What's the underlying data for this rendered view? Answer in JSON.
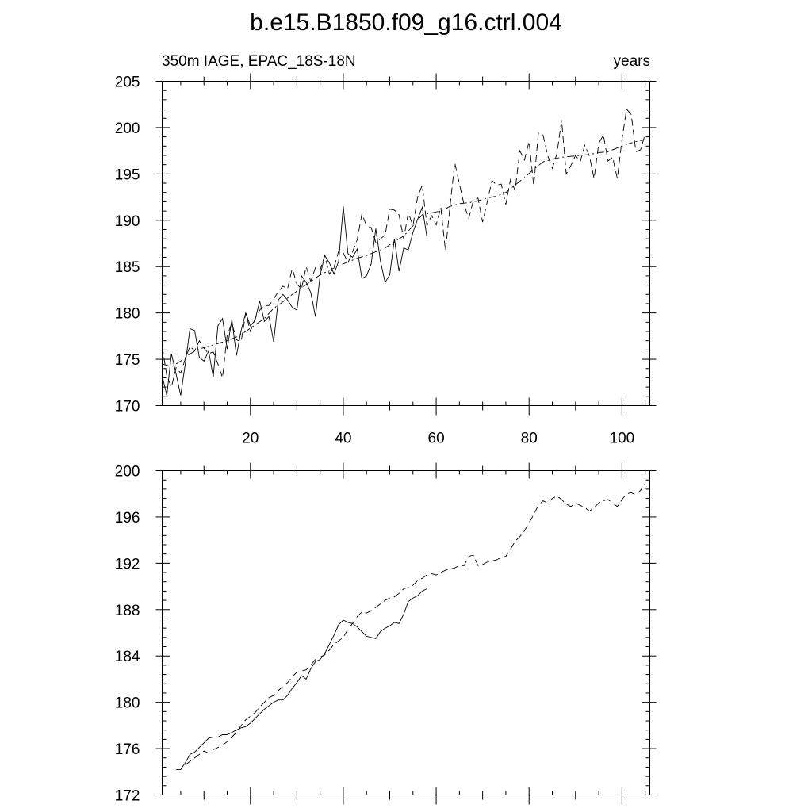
{
  "figure": {
    "title": "b.e15.B1850.f09_g16.ctrl.004"
  },
  "chart_data": [
    {
      "type": "line",
      "title": "b.e15.B1850.f09_g16.ctrl.004",
      "left_label": "350m IAGE, EPAC_18S-18N",
      "right_label": "years",
      "xlim": [
        1,
        106
      ],
      "ylim": [
        170,
        205
      ],
      "xticks": [
        20,
        40,
        60,
        80,
        100
      ],
      "yticks": [
        170,
        175,
        180,
        185,
        190,
        195,
        200,
        205
      ],
      "grid": false,
      "series": [
        {
          "style": "solid",
          "x": [
            1,
            2,
            3,
            4,
            5,
            6,
            7,
            8,
            9,
            10,
            11,
            12,
            13,
            14,
            15,
            16,
            17,
            18,
            19,
            20,
            21,
            22,
            23,
            24,
            25,
            26,
            27,
            28,
            29,
            30,
            31,
            32,
            33,
            34,
            35,
            36,
            37,
            38,
            39,
            40,
            41,
            42,
            43,
            44,
            45,
            46,
            47,
            48,
            49,
            50,
            51,
            52,
            53,
            54,
            55,
            56,
            57,
            58
          ],
          "y": [
            173.2,
            171.1,
            175.6,
            173.4,
            171.1,
            174.6,
            178.3,
            178.1,
            175.2,
            174.8,
            175.9,
            173.1,
            178.6,
            179.4,
            176.1,
            179.3,
            175.4,
            178.1,
            180.0,
            178.6,
            179.2,
            181.3,
            179.1,
            179.6,
            176.9,
            181.4,
            182.0,
            181.4,
            180.6,
            180.3,
            184.0,
            183.3,
            182.2,
            179.6,
            184.0,
            186.2,
            185.4,
            184.2,
            185.6,
            191.5,
            186.4,
            186.0,
            186.9,
            183.7,
            184.0,
            185.3,
            189.1,
            185.6,
            183.3,
            184.1,
            188.0,
            184.5,
            187.0,
            186.8,
            188.7,
            190.1,
            191.4,
            188.2
          ]
        },
        {
          "style": "dashed",
          "x": [
            1,
            2,
            3,
            4,
            5,
            6,
            7,
            8,
            9,
            10,
            11,
            12,
            13,
            14,
            15,
            16,
            17,
            18,
            19,
            20,
            21,
            22,
            23,
            24,
            25,
            26,
            27,
            28,
            29,
            30,
            31,
            32,
            33,
            34,
            35,
            36,
            37,
            38,
            39,
            40,
            41,
            42,
            43,
            44,
            45,
            46,
            47,
            48,
            49,
            50,
            51,
            52,
            53,
            54,
            55,
            56,
            57,
            58,
            59,
            60,
            61,
            62,
            63,
            64,
            65,
            66,
            67,
            68,
            69,
            70,
            71,
            72,
            73,
            74,
            75,
            76,
            77,
            78,
            79,
            80,
            81,
            82,
            83,
            84,
            85,
            86,
            87,
            88,
            89,
            90,
            91,
            92,
            93,
            94,
            95,
            96,
            97,
            98,
            99,
            100,
            101,
            102,
            103,
            104,
            105
          ],
          "y": [
            176.4,
            173.2,
            172.0,
            174.1,
            173.5,
            175.1,
            176.4,
            175.9,
            177.0,
            176.2,
            175.6,
            175.8,
            174.5,
            173.0,
            177.6,
            178.9,
            177.1,
            176.9,
            180.0,
            178.0,
            179.4,
            180.3,
            180.8,
            180.8,
            181.5,
            182.3,
            182.9,
            182.6,
            184.8,
            183.1,
            182.6,
            185.0,
            183.4,
            184.9,
            184.6,
            186.2,
            184.2,
            184.9,
            186.7,
            186.5,
            185.4,
            186.6,
            187.9,
            190.7,
            189.4,
            189.2,
            187.6,
            188.0,
            188.4,
            191.2,
            191.1,
            190.6,
            188.0,
            190.8,
            189.4,
            192.5,
            193.8,
            189.4,
            190.5,
            189.5,
            191.4,
            186.7,
            191.6,
            196.2,
            193.9,
            191.7,
            190.2,
            192.1,
            192.4,
            189.8,
            192.0,
            194.3,
            193.8,
            193.9,
            191.7,
            194.4,
            193.2,
            197.5,
            196.5,
            198.5,
            193.7,
            199.4,
            199.2,
            197.0,
            195.6,
            197.2,
            200.8,
            195.0,
            195.9,
            197.0,
            196.3,
            198.1,
            196.9,
            194.5,
            198.3,
            199.2,
            196.4,
            196.8,
            194.5,
            198.7,
            202.0,
            201.4,
            197.4,
            197.6,
            199.3
          ]
        },
        {
          "style": "dash-dot",
          "x": [
            1,
            3,
            5,
            7,
            9,
            11,
            13,
            15,
            17,
            19,
            21,
            23,
            25,
            27,
            29,
            31,
            33,
            35,
            37,
            39,
            41,
            43,
            45,
            47,
            49,
            51,
            53,
            55,
            57,
            59,
            61,
            63,
            65,
            67,
            69,
            71,
            73,
            75,
            77,
            79,
            81,
            83,
            85,
            87,
            89,
            91,
            93,
            95,
            97,
            99,
            101,
            103,
            105
          ],
          "y": [
            174.5,
            174.2,
            174.8,
            175.6,
            176.1,
            176.4,
            176.7,
            177.0,
            177.4,
            178.0,
            178.7,
            179.4,
            180.5,
            181.2,
            182.0,
            182.7,
            183.4,
            184.1,
            184.6,
            185.1,
            185.5,
            185.9,
            186.2,
            186.6,
            187.0,
            187.7,
            188.3,
            189.4,
            190.6,
            190.8,
            191.0,
            191.5,
            191.8,
            191.9,
            192.1,
            192.4,
            192.6,
            193.0,
            193.8,
            194.6,
            195.5,
            196.3,
            196.6,
            196.8,
            196.9,
            197.0,
            197.1,
            197.3,
            197.4,
            197.8,
            198.2,
            198.5,
            198.7
          ]
        }
      ]
    },
    {
      "type": "line",
      "title": "",
      "xlim": [
        1,
        106
      ],
      "ylim": [
        172,
        200
      ],
      "xticks": [
        20,
        40,
        60,
        80,
        100
      ],
      "yticks": [
        172,
        176,
        180,
        184,
        188,
        192,
        196,
        200
      ],
      "grid": false,
      "series": [
        {
          "style": "solid",
          "x": [
            5,
            6,
            7,
            8,
            9,
            10,
            11,
            12,
            13,
            14,
            15,
            16,
            17,
            18,
            19,
            20,
            21,
            22,
            23,
            24,
            25,
            26,
            27,
            28,
            29,
            30,
            31,
            32,
            33,
            34,
            35,
            36,
            37,
            38,
            39,
            40,
            41,
            42,
            43,
            44,
            45,
            46,
            47,
            48,
            49,
            50,
            51,
            52,
            53,
            54,
            55,
            56,
            57,
            58
          ],
          "y": [
            174.2,
            174.8,
            175.5,
            175.7,
            176.1,
            176.5,
            176.9,
            177.0,
            177.0,
            177.2,
            177.2,
            177.4,
            177.6,
            177.8,
            177.9,
            178.2,
            178.6,
            179.0,
            179.4,
            179.7,
            180.0,
            180.2,
            180.2,
            180.6,
            181.2,
            181.7,
            182.3,
            182.0,
            182.9,
            183.5,
            183.7,
            184.2,
            185.0,
            185.8,
            186.7,
            187.1,
            186.9,
            186.8,
            186.5,
            186.1,
            185.7,
            185.6,
            185.5,
            186.1,
            186.4,
            186.6,
            186.9,
            186.8,
            187.6,
            188.7,
            189.0,
            189.2,
            189.6,
            189.8
          ]
        },
        {
          "style": "dashed",
          "x": [
            4,
            5,
            6,
            7,
            8,
            9,
            10,
            11,
            12,
            13,
            14,
            15,
            16,
            17,
            18,
            19,
            20,
            21,
            22,
            23,
            24,
            25,
            26,
            27,
            28,
            29,
            30,
            31,
            32,
            33,
            34,
            35,
            36,
            37,
            38,
            39,
            40,
            41,
            42,
            43,
            44,
            45,
            46,
            47,
            48,
            49,
            50,
            51,
            52,
            53,
            54,
            55,
            56,
            57,
            58,
            59,
            60,
            61,
            62,
            63,
            64,
            65,
            66,
            67,
            68,
            69,
            70,
            71,
            72,
            73,
            74,
            75,
            76,
            77,
            78,
            79,
            80,
            81,
            82,
            83,
            84,
            85,
            86,
            87,
            88,
            89,
            90,
            91,
            92,
            93,
            94,
            95,
            96,
            97,
            98,
            99,
            100,
            101,
            102,
            103,
            104,
            105
          ],
          "y": [
            174.2,
            174.2,
            174.6,
            174.9,
            175.2,
            175.5,
            175.8,
            175.6,
            175.9,
            176.1,
            176.3,
            176.6,
            177.0,
            177.4,
            178.0,
            178.5,
            178.8,
            179.1,
            179.6,
            180.0,
            180.4,
            180.6,
            181.0,
            181.4,
            181.7,
            182.2,
            182.6,
            182.7,
            182.8,
            183.2,
            183.7,
            183.9,
            184.1,
            184.5,
            185.0,
            185.3,
            185.6,
            186.3,
            186.8,
            187.4,
            187.8,
            187.7,
            187.9,
            188.2,
            188.5,
            188.8,
            189.0,
            189.1,
            189.4,
            189.8,
            189.9,
            190.1,
            190.5,
            190.7,
            191.0,
            191.1,
            191.0,
            191.2,
            191.4,
            191.5,
            191.6,
            191.8,
            191.8,
            192.6,
            192.7,
            191.8,
            191.9,
            192.1,
            192.2,
            192.3,
            192.5,
            192.6,
            193.2,
            193.9,
            194.3,
            194.8,
            195.5,
            196.2,
            197.0,
            197.4,
            197.2,
            197.6,
            197.8,
            197.5,
            197.1,
            196.9,
            197.2,
            197.0,
            196.8,
            196.5,
            196.8,
            197.2,
            197.4,
            197.5,
            197.2,
            196.9,
            197.5,
            198.0,
            198.1,
            197.9,
            198.3,
            198.9
          ]
        }
      ]
    }
  ]
}
